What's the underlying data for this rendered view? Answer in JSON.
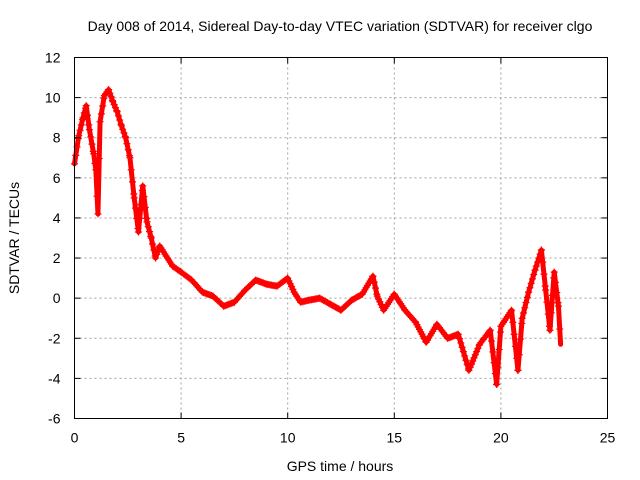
{
  "chart_data": {
    "type": "scatter",
    "title": "Day 008 of 2014, Sidereal Day-to-day VTEC variation (SDTVAR) for receiver clgo",
    "xlabel": "GPS time / hours",
    "ylabel": "SDTVAR / TECUs",
    "xlim": [
      0,
      25
    ],
    "ylim": [
      -6,
      12
    ],
    "xticks": [
      0,
      5,
      10,
      15,
      20,
      25
    ],
    "yticks": [
      -6,
      -4,
      -2,
      0,
      2,
      4,
      6,
      8,
      10,
      12
    ],
    "grid": true,
    "marker": "+",
    "color": "#ff0000",
    "series": [
      {
        "name": "SDTVAR",
        "x": [
          0.0,
          0.2,
          0.4,
          0.55,
          0.7,
          0.9,
          1.0,
          1.1,
          1.2,
          1.4,
          1.6,
          1.8,
          2.0,
          2.2,
          2.4,
          2.6,
          2.8,
          3.0,
          3.2,
          3.4,
          3.6,
          3.8,
          4.0,
          4.3,
          4.6,
          5.0,
          5.5,
          6.0,
          6.5,
          7.0,
          7.5,
          8.0,
          8.5,
          9.0,
          9.5,
          10.0,
          10.3,
          10.6,
          11.0,
          11.5,
          12.0,
          12.5,
          13.0,
          13.5,
          14.0,
          14.2,
          14.5,
          15.0,
          15.5,
          16.0,
          16.5,
          17.0,
          17.5,
          18.0,
          18.5,
          19.0,
          19.5,
          19.8,
          20.0,
          20.5,
          20.8,
          21.0,
          21.3,
          21.6,
          21.9,
          22.1,
          22.3,
          22.5,
          22.7,
          22.8
        ],
        "y": [
          6.7,
          8.1,
          9.0,
          9.6,
          8.4,
          7.2,
          6.4,
          4.2,
          8.8,
          10.1,
          10.4,
          9.8,
          9.3,
          8.6,
          8.0,
          7.0,
          5.0,
          3.3,
          5.6,
          3.8,
          3.0,
          2.0,
          2.6,
          2.1,
          1.6,
          1.3,
          0.9,
          0.3,
          0.1,
          -0.4,
          -0.2,
          0.4,
          0.9,
          0.7,
          0.6,
          1.0,
          0.3,
          -0.2,
          -0.1,
          0.0,
          -0.3,
          -0.6,
          -0.1,
          0.2,
          1.1,
          0.1,
          -0.6,
          0.2,
          -0.6,
          -1.2,
          -2.2,
          -1.3,
          -2.0,
          -1.8,
          -3.6,
          -2.3,
          -1.6,
          -4.3,
          -1.4,
          -0.6,
          -3.6,
          -1.0,
          0.3,
          1.4,
          2.4,
          0.4,
          -1.6,
          1.3,
          -0.4,
          -2.3
        ]
      }
    ]
  }
}
